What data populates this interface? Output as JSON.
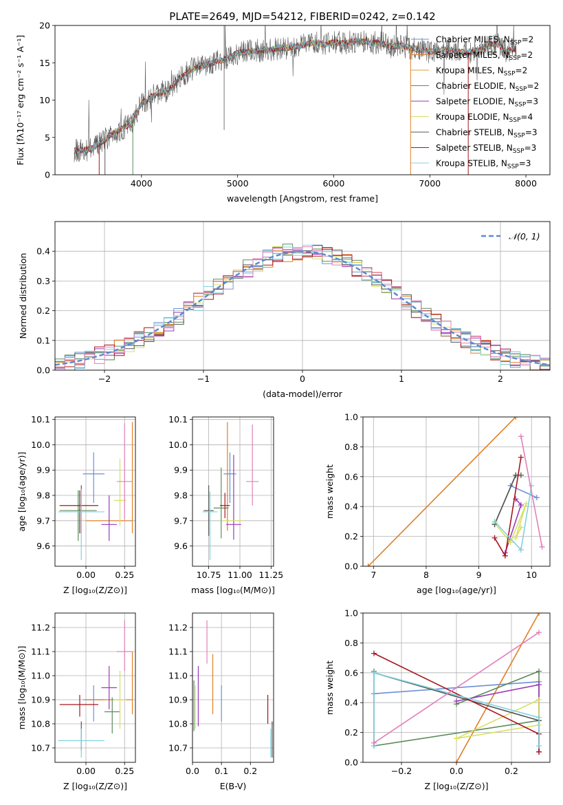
{
  "colors": [
    "#6a8fd6",
    "#e07d22",
    "#d4a030",
    "#5b8b5b",
    "#9a37b8",
    "#d8e060",
    "#555555",
    "#a8141c",
    "#80d0e0",
    "#e080b8"
  ],
  "chart_data": [
    {
      "id": "spectrum",
      "type": "line",
      "title": "PLATE=2649, MJD=54212, FIBERID=0242, z=0.142",
      "xlabel": "wavelength [Angstrom, rest frame]",
      "ylabel": "Flux [fλ10⁻¹⁷ erg cm⁻² s⁻¹ A⁻¹]",
      "xlim": [
        3100,
        8250
      ],
      "ylim": [
        0,
        20
      ],
      "xticks": [
        4000,
        5000,
        6000,
        7000,
        8000
      ],
      "yticks": [
        0,
        5,
        10,
        15,
        20
      ],
      "grid": false,
      "legend": "top-right",
      "spectrum_x": [
        3300,
        3400,
        3500,
        3600,
        3700,
        3800,
        3900,
        4000,
        4100,
        4200,
        4300,
        4400,
        4500,
        4600,
        4700,
        4800,
        4900,
        5000,
        5100,
        5200,
        5300,
        5400,
        5500,
        5600,
        5700,
        5800,
        5900,
        6000,
        6100,
        6200,
        6300,
        6400,
        6500,
        6600,
        6700,
        6800,
        6900,
        7000,
        7100,
        7200,
        7300,
        7400,
        7500,
        7600,
        7700,
        7800,
        7900
      ],
      "spectrum_y": [
        3.2,
        3.3,
        3.6,
        4.5,
        5.5,
        6.2,
        6.8,
        9.5,
        10.5,
        11.0,
        11.5,
        13.0,
        14.0,
        14.5,
        14.8,
        15.2,
        15.6,
        16.3,
        16.5,
        16.6,
        16.7,
        16.9,
        17.0,
        17.2,
        17.4,
        17.7,
        17.4,
        17.8,
        17.6,
        17.8,
        17.9,
        17.7,
        17.6,
        17.2,
        17.3,
        17.0,
        16.8,
        16.5,
        16.7,
        16.8,
        16.5,
        16.4,
        16.6,
        17.2,
        17.5,
        16.5,
        17.0
      ],
      "series": [
        {
          "name": "Chabrier MILES, N<sub>SSP</sub>=2",
          "color": "#6a8fd6"
        },
        {
          "name": "Salpeter MILES, N<sub>SSP</sub>=2",
          "color": "#e07d22"
        },
        {
          "name": "Kroupa MILES, N<sub>SSP</sub>=2",
          "color": "#d4a030"
        },
        {
          "name": "Chabrier ELODIE, N<sub>SSP</sub>=2",
          "color": "#5b8b5b"
        },
        {
          "name": "Salpeter ELODIE, N<sub>SSP</sub>=3",
          "color": "#9a37b8"
        },
        {
          "name": "Kroupa ELODIE, N<sub>SSP</sub>=4",
          "color": "#d8e060"
        },
        {
          "name": "Chabrier STELIB, N<sub>SSP</sub>=3",
          "color": "#555555"
        },
        {
          "name": "Salpeter STELIB, N<sub>SSP</sub>=3",
          "color": "#a8141c"
        },
        {
          "name": "Kroupa STELIB, N<sub>SSP</sub>=3",
          "color": "#80d0e0"
        }
      ]
    },
    {
      "id": "residuals",
      "type": "line",
      "xlabel": "(data-model)/error",
      "ylabel": "Normed distribution",
      "xlim": [
        -2.5,
        2.5
      ],
      "ylim": [
        0,
        0.5
      ],
      "xticks": [
        -2,
        -1,
        0,
        1,
        2
      ],
      "xtick_labels": [
        "−2",
        "−1",
        "0",
        "1",
        "2"
      ],
      "yticks": [
        0,
        0.1,
        0.2,
        0.3,
        0.4
      ],
      "grid": true,
      "legend": "top-right",
      "legend_label": "𝒩(0, 1)",
      "gaussian": {
        "mean": 0,
        "sigma": 1
      }
    },
    {
      "id": "age-vs-Z",
      "type": "scatter",
      "xlabel": "Z [log₁₀(Z/Z⊙)]",
      "ylabel": "age  [log₁₀(age/yr)]",
      "xlim": [
        -0.2,
        0.32
      ],
      "ylim": [
        9.52,
        10.11
      ],
      "xticks": [
        0,
        0.25
      ],
      "xtick_labels": [
        "0.00",
        "0.25"
      ],
      "yticks": [
        9.6,
        9.7,
        9.8,
        9.9,
        10.0,
        10.1
      ],
      "grid": true,
      "points": [
        {
          "x": 0.05,
          "y": 9.885,
          "xerr": [
            0.07,
            0.07
          ],
          "yerr": [
            0.115,
            0.085
          ],
          "color": "#6a8fd6"
        },
        {
          "x": 0.3,
          "y": 9.7,
          "xerr": [
            0.3,
            0.0
          ],
          "yerr": [
            0.05,
            0.39
          ],
          "color": "#e07d22"
        },
        {
          "x": -0.05,
          "y": 9.74,
          "xerr": [
            0.12,
            0.12
          ],
          "yerr": [
            0.12,
            0.08
          ],
          "color": "#5b8b5b"
        },
        {
          "x": 0.15,
          "y": 9.685,
          "xerr": [
            0.05,
            0.05
          ],
          "yerr": [
            0.065,
            0.115
          ],
          "color": "#9a37b8"
        },
        {
          "x": 0.22,
          "y": 9.78,
          "xerr": [
            0.04,
            0.04
          ],
          "yerr": [
            0.1,
            0.165
          ],
          "color": "#d8e060"
        },
        {
          "x": -0.03,
          "y": 9.74,
          "xerr": [
            0.0,
            0.0
          ],
          "yerr": [
            0.09,
            0.1
          ],
          "color": "#555555"
        },
        {
          "x": -0.04,
          "y": 9.76,
          "xerr": [
            0.13,
            0.12
          ],
          "yerr": [
            0.11,
            0.06
          ],
          "color": "#a8141c"
        },
        {
          "x": -0.03,
          "y": 9.735,
          "xerr": [
            0.15,
            0.15
          ],
          "yerr": [
            0.19,
            0.09
          ],
          "color": "#80d0e0"
        },
        {
          "x": 0.25,
          "y": 9.855,
          "xerr": [
            0.05,
            0.05
          ],
          "yerr": [
            0.15,
            0.23
          ],
          "color": "#e080b8"
        }
      ]
    },
    {
      "id": "age-vs-mass",
      "type": "scatter",
      "xlabel": "mass [log₁₀(M/M⊙)]",
      "ylabel": "",
      "xlim": [
        10.62,
        11.27
      ],
      "ylim": [
        9.52,
        10.11
      ],
      "xticks": [
        10.75,
        11.0,
        11.25
      ],
      "xtick_labels": [
        "10.75",
        "11.00",
        "11.25"
      ],
      "yticks": [
        9.6,
        9.7,
        9.8,
        9.9,
        10.0,
        10.1
      ],
      "grid": true,
      "points": [
        {
          "x": 10.92,
          "y": 9.885,
          "xerr": [
            0.05,
            0.05
          ],
          "yerr": [
            0.115,
            0.085
          ],
          "color": "#6a8fd6"
        },
        {
          "x": 10.9,
          "y": 9.7,
          "xerr": [
            0.0,
            0.0
          ],
          "yerr": [
            0.04,
            0.39
          ],
          "color": "#e07d22"
        },
        {
          "x": 10.85,
          "y": 9.75,
          "xerr": [
            0.06,
            0.06
          ],
          "yerr": [
            0.12,
            0.16
          ],
          "color": "#5b8b5b"
        },
        {
          "x": 10.95,
          "y": 9.685,
          "xerr": [
            0.06,
            0.06
          ],
          "yerr": [
            0.06,
            0.275
          ],
          "color": "#9a37b8"
        },
        {
          "x": 10.94,
          "y": 9.7,
          "xerr": [
            0.09,
            0.09
          ],
          "yerr": [
            0.0,
            0.0
          ],
          "color": "#d8e060"
        },
        {
          "x": 10.75,
          "y": 9.74,
          "xerr": [
            0.04,
            0.04
          ],
          "yerr": [
            0.1,
            0.1
          ],
          "color": "#555555"
        },
        {
          "x": 10.88,
          "y": 9.76,
          "xerr": [
            0.04,
            0.04
          ],
          "yerr": [
            0.05,
            0.05
          ],
          "color": "#a8141c"
        },
        {
          "x": 10.76,
          "y": 9.735,
          "xerr": [
            0.06,
            0.06
          ],
          "yerr": [
            0.19,
            0.08
          ],
          "color": "#80d0e0"
        },
        {
          "x": 11.1,
          "y": 9.855,
          "xerr": [
            0.05,
            0.05
          ],
          "yerr": [
            0.095,
            0.225
          ],
          "color": "#e080b8"
        }
      ]
    },
    {
      "id": "weight-vs-age",
      "type": "line",
      "xlabel": "age  [log₁₀(age/yr)]",
      "ylabel": "mass weight",
      "xlim": [
        6.8,
        10.35
      ],
      "ylim": [
        0,
        1
      ],
      "xticks": [
        7,
        8,
        9,
        10
      ],
      "yticks": [
        0,
        0.2,
        0.4,
        0.6,
        0.8,
        1.0
      ],
      "grid": true,
      "series": [
        {
          "color": "#6a8fd6",
          "x": [
            9.6,
            10.1
          ],
          "y": [
            0.54,
            0.46
          ]
        },
        {
          "color": "#e07d22",
          "x": [
            6.9,
            9.7
          ],
          "y": [
            0.0,
            1.0
          ]
        },
        {
          "color": "#5b8b5b",
          "x": [
            9.3,
            9.7
          ],
          "y": [
            0.28,
            0.61
          ]
        },
        {
          "color": "#9a37b8",
          "x": [
            9.5,
            9.8,
            9.7
          ],
          "y": [
            0.09,
            0.41,
            0.45
          ]
        },
        {
          "color": "#d8e060",
          "x": [
            9.3,
            9.6,
            9.9,
            9.7,
            9.8
          ],
          "y": [
            0.29,
            0.16,
            0.42,
            0.19,
            0.26
          ]
        },
        {
          "color": "#555555",
          "x": [
            9.3,
            9.7,
            9.8
          ],
          "y": [
            0.28,
            0.61,
            0.61
          ]
        },
        {
          "color": "#a8141c",
          "x": [
            9.3,
            9.5,
            9.8
          ],
          "y": [
            0.19,
            0.07,
            0.73
          ]
        },
        {
          "color": "#80d0e0",
          "x": [
            9.3,
            9.8,
            10.0,
            9.8
          ],
          "y": [
            0.3,
            0.11,
            0.54,
            0.11
          ]
        },
        {
          "color": "#e080b8",
          "x": [
            9.8,
            10.2
          ],
          "y": [
            0.87,
            0.13
          ]
        }
      ]
    },
    {
      "id": "mass-vs-Z",
      "type": "scatter",
      "xlabel": "Z [log₁₀(Z/Z⊙)]",
      "ylabel": "mass [log₁₀(M/M⊙)]",
      "xlim": [
        -0.2,
        0.32
      ],
      "ylim": [
        10.64,
        11.26
      ],
      "xticks": [
        0,
        0.25
      ],
      "xtick_labels": [
        "0.00",
        "0.25"
      ],
      "yticks": [
        10.7,
        10.8,
        10.9,
        11.0,
        11.1,
        11.2
      ],
      "grid": true,
      "points": [
        {
          "x": 0.05,
          "y": 10.9,
          "xerr": [
            0.07,
            0.07
          ],
          "yerr": [
            0.09,
            0.06
          ],
          "color": "#6a8fd6"
        },
        {
          "x": 0.3,
          "y": 10.9,
          "xerr": [
            0.3,
            0.0
          ],
          "yerr": [
            0.06,
            0.2
          ],
          "color": "#e07d22"
        },
        {
          "x": 0.17,
          "y": 10.85,
          "xerr": [
            0.05,
            0.05
          ],
          "yerr": [
            0.09,
            0.06
          ],
          "color": "#5b8b5b"
        },
        {
          "x": 0.15,
          "y": 10.95,
          "xerr": [
            0.05,
            0.05
          ],
          "yerr": [
            0.09,
            0.09
          ],
          "color": "#9a37b8"
        },
        {
          "x": 0.22,
          "y": 10.9,
          "xerr": [
            0.04,
            0.04
          ],
          "yerr": [
            0.12,
            0.12
          ],
          "color": "#d8e060"
        },
        {
          "x": -0.03,
          "y": 10.73,
          "xerr": [
            0.0,
            0.0
          ],
          "yerr": [
            0.04,
            0.08
          ],
          "color": "#555555"
        },
        {
          "x": -0.04,
          "y": 10.88,
          "xerr": [
            0.13,
            0.12
          ],
          "yerr": [
            0.05,
            0.04
          ],
          "color": "#a8141c"
        },
        {
          "x": -0.03,
          "y": 10.73,
          "xerr": [
            0.15,
            0.15
          ],
          "yerr": [
            0.07,
            0.05
          ],
          "color": "#80d0e0"
        },
        {
          "x": 0.25,
          "y": 11.1,
          "xerr": [
            0.05,
            0.05
          ],
          "yerr": [
            0.08,
            0.13
          ],
          "color": "#e080b8"
        }
      ]
    },
    {
      "id": "mass-vs-ebv",
      "type": "scatter",
      "xlabel": "E(B-V)",
      "ylabel": "",
      "xlim": [
        0,
        0.28
      ],
      "ylim": [
        10.64,
        11.26
      ],
      "xticks": [
        0,
        0.1,
        0.2
      ],
      "xtick_labels": [
        "0.0",
        "0.1",
        "0.2"
      ],
      "yticks": [
        10.7,
        10.8,
        10.9,
        11.0,
        11.1,
        11.2
      ],
      "grid": true,
      "points": [
        {
          "x": 0.1,
          "y": 10.9,
          "xerr": [
            0,
            0
          ],
          "yerr": [
            0.09,
            0.06
          ],
          "color": "#6a8fd6"
        },
        {
          "x": 0.07,
          "y": 10.95,
          "xerr": [
            0,
            0
          ],
          "yerr": [
            0.11,
            0.14
          ],
          "color": "#e07d22"
        },
        {
          "x": 0.005,
          "y": 10.85,
          "xerr": [
            0,
            0
          ],
          "yerr": [
            0.08,
            0.13
          ],
          "color": "#5b8b5b"
        },
        {
          "x": 0.02,
          "y": 10.95,
          "xerr": [
            0,
            0
          ],
          "yerr": [
            0.16,
            0.09
          ],
          "color": "#9a37b8"
        },
        {
          "x": 0.01,
          "y": 10.9,
          "xerr": [
            0,
            0
          ],
          "yerr": [
            0.12,
            0.06
          ],
          "color": "#d8e060"
        },
        {
          "x": 0.275,
          "y": 10.73,
          "xerr": [
            0,
            0
          ],
          "yerr": [
            0.07,
            0.08
          ],
          "color": "#555555"
        },
        {
          "x": 0.26,
          "y": 10.86,
          "xerr": [
            0,
            0
          ],
          "yerr": [
            0.06,
            0.06
          ],
          "color": "#a8141c"
        },
        {
          "x": 0.27,
          "y": 10.73,
          "xerr": [
            0,
            0
          ],
          "yerr": [
            0.07,
            0.05
          ],
          "color": "#80d0e0"
        },
        {
          "x": 0.05,
          "y": 11.14,
          "xerr": [
            0,
            0
          ],
          "yerr": [
            0.09,
            0.09
          ],
          "color": "#e080b8"
        }
      ]
    },
    {
      "id": "weight-vs-Z",
      "type": "line",
      "xlabel": "Z [log₁₀(Z/Z⊙)]",
      "ylabel": "mass weight",
      "xlim": [
        -0.34,
        0.34
      ],
      "ylim": [
        0,
        1
      ],
      "xticks": [
        -0.2,
        0,
        0.2
      ],
      "xtick_labels": [
        "−0.2",
        "0.0",
        "0.2"
      ],
      "yticks": [
        0,
        0.2,
        0.4,
        0.6,
        0.8,
        1.0
      ],
      "grid": true,
      "series": [
        {
          "color": "#6a8fd6",
          "x": [
            -0.3,
            0.3
          ],
          "y": [
            0.46,
            0.54
          ]
        },
        {
          "color": "#e07d22",
          "x": [
            0.0,
            0.3
          ],
          "y": [
            0.0,
            1.0
          ]
        },
        {
          "color": "#5b8b5b",
          "x": [
            0.0,
            0.3,
            0.3,
            -0.3,
            -0.3
          ],
          "y": [
            0.39,
            0.61,
            0.28,
            0.11,
            0.61
          ]
        },
        {
          "color": "#9a37b8",
          "x": [
            0.0,
            0.3,
            0.3
          ],
          "y": [
            0.41,
            0.52,
            0.07
          ]
        },
        {
          "color": "#d8e060",
          "x": [
            0.0,
            0.3,
            0.3,
            0.0
          ],
          "y": [
            0.16,
            0.25,
            0.42,
            0.16
          ]
        },
        {
          "color": "#555555",
          "x": [
            -0.3,
            0.3
          ],
          "y": [
            0.6,
            0.28
          ]
        },
        {
          "color": "#a8141c",
          "x": [
            -0.3,
            0.3,
            0.3
          ],
          "y": [
            0.73,
            0.19,
            0.07
          ]
        },
        {
          "color": "#80d0e0",
          "x": [
            -0.3,
            -0.3,
            0.3,
            0.3
          ],
          "y": [
            0.11,
            0.6,
            0.3,
            0.11
          ]
        },
        {
          "color": "#e080b8",
          "x": [
            -0.3,
            0.3
          ],
          "y": [
            0.13,
            0.87
          ]
        }
      ]
    }
  ]
}
